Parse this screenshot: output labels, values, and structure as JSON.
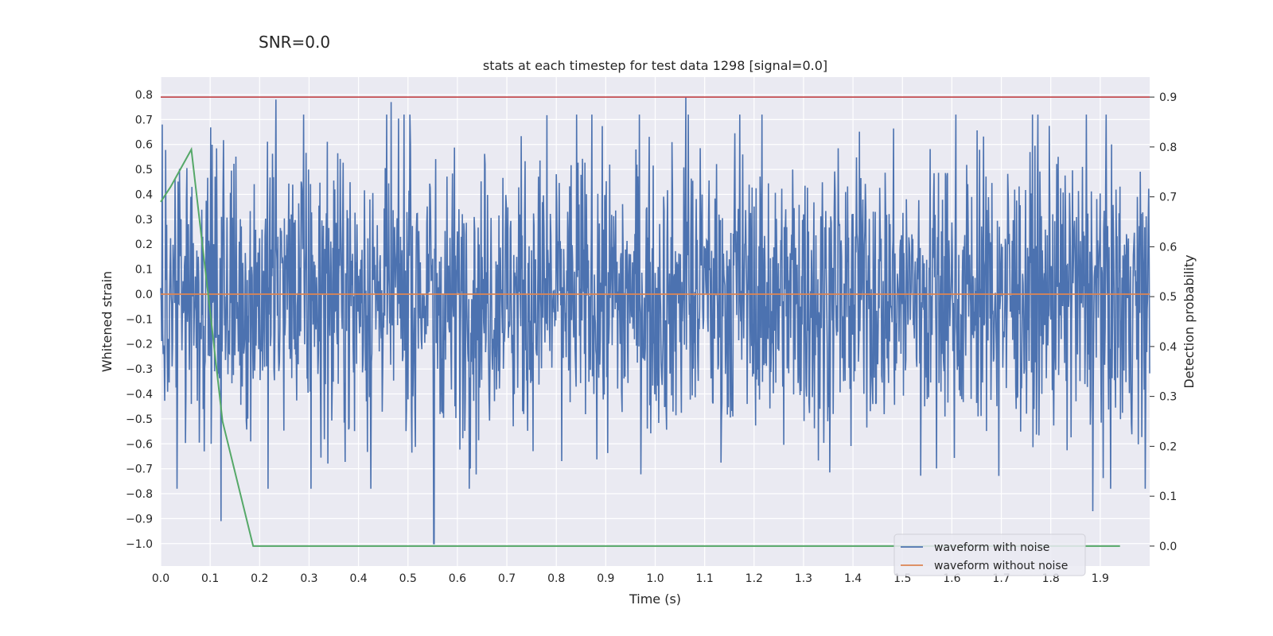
{
  "suptitle": "SNR=0.0",
  "chart_data": {
    "type": "line",
    "title": "stats at each timestep for test data 1298 [signal=0.0]",
    "xlabel": "Time (s)",
    "ylabel": "Whitened strain",
    "y2label": "Detection probability",
    "xlim": [
      0.0,
      2.0
    ],
    "ylim": [
      -1.09,
      0.87
    ],
    "y2lim": [
      -0.04,
      0.94
    ],
    "xticks": [
      "0.0",
      "0.1",
      "0.2",
      "0.3",
      "0.4",
      "0.5",
      "0.6",
      "0.7",
      "0.8",
      "0.9",
      "1.0",
      "1.1",
      "1.2",
      "1.3",
      "1.4",
      "1.5",
      "1.6",
      "1.7",
      "1.8",
      "1.9"
    ],
    "yticks": [
      "0.8",
      "0.7",
      "0.6",
      "0.5",
      "0.4",
      "0.3",
      "0.2",
      "0.1",
      "0.0",
      "−0.1",
      "−0.2",
      "−0.3",
      "−0.4",
      "−0.5",
      "−0.6",
      "−0.7",
      "−0.8",
      "−0.9",
      "−1.0"
    ],
    "y2ticks": [
      "0.9",
      "0.8",
      "0.7",
      "0.6",
      "0.5",
      "0.4",
      "0.3",
      "0.2",
      "0.1",
      "0.0"
    ],
    "threshold": 0.9,
    "grid": true,
    "legend_position": "lower-right",
    "series": [
      {
        "name": "waveform with noise",
        "color": "#4c72b0",
        "axis": "left",
        "summary": "noise-like signal sampled from 0.0 to 2.0 s",
        "peaks": [
          [
            0.003,
            0.68
          ],
          [
            0.233,
            0.78
          ],
          [
            0.466,
            0.77
          ],
          [
            0.552,
            -1.0
          ],
          [
            0.553,
            -1.0
          ],
          [
            1.062,
            0.79
          ],
          [
            1.062,
            0.79
          ],
          [
            1.885,
            -0.87
          ],
          [
            0.122,
            -0.91
          ]
        ]
      },
      {
        "name": "waveform without noise",
        "color": "#dd8452",
        "axis": "left",
        "x": [
          0.0,
          2.0
        ],
        "values": [
          0.0,
          0.0
        ]
      },
      {
        "name": "detection probability",
        "color": "#55a868",
        "axis": "right",
        "x": [
          0.0,
          0.02,
          0.062,
          0.1,
          0.125,
          0.187,
          0.25,
          0.312,
          0.375,
          0.5,
          1.0,
          1.5,
          1.94
        ],
        "values": [
          0.69,
          0.72,
          0.795,
          0.47,
          0.25,
          0.0,
          0.0,
          0.0,
          0.0,
          0.0,
          0.0,
          0.0,
          0.0
        ]
      }
    ]
  }
}
